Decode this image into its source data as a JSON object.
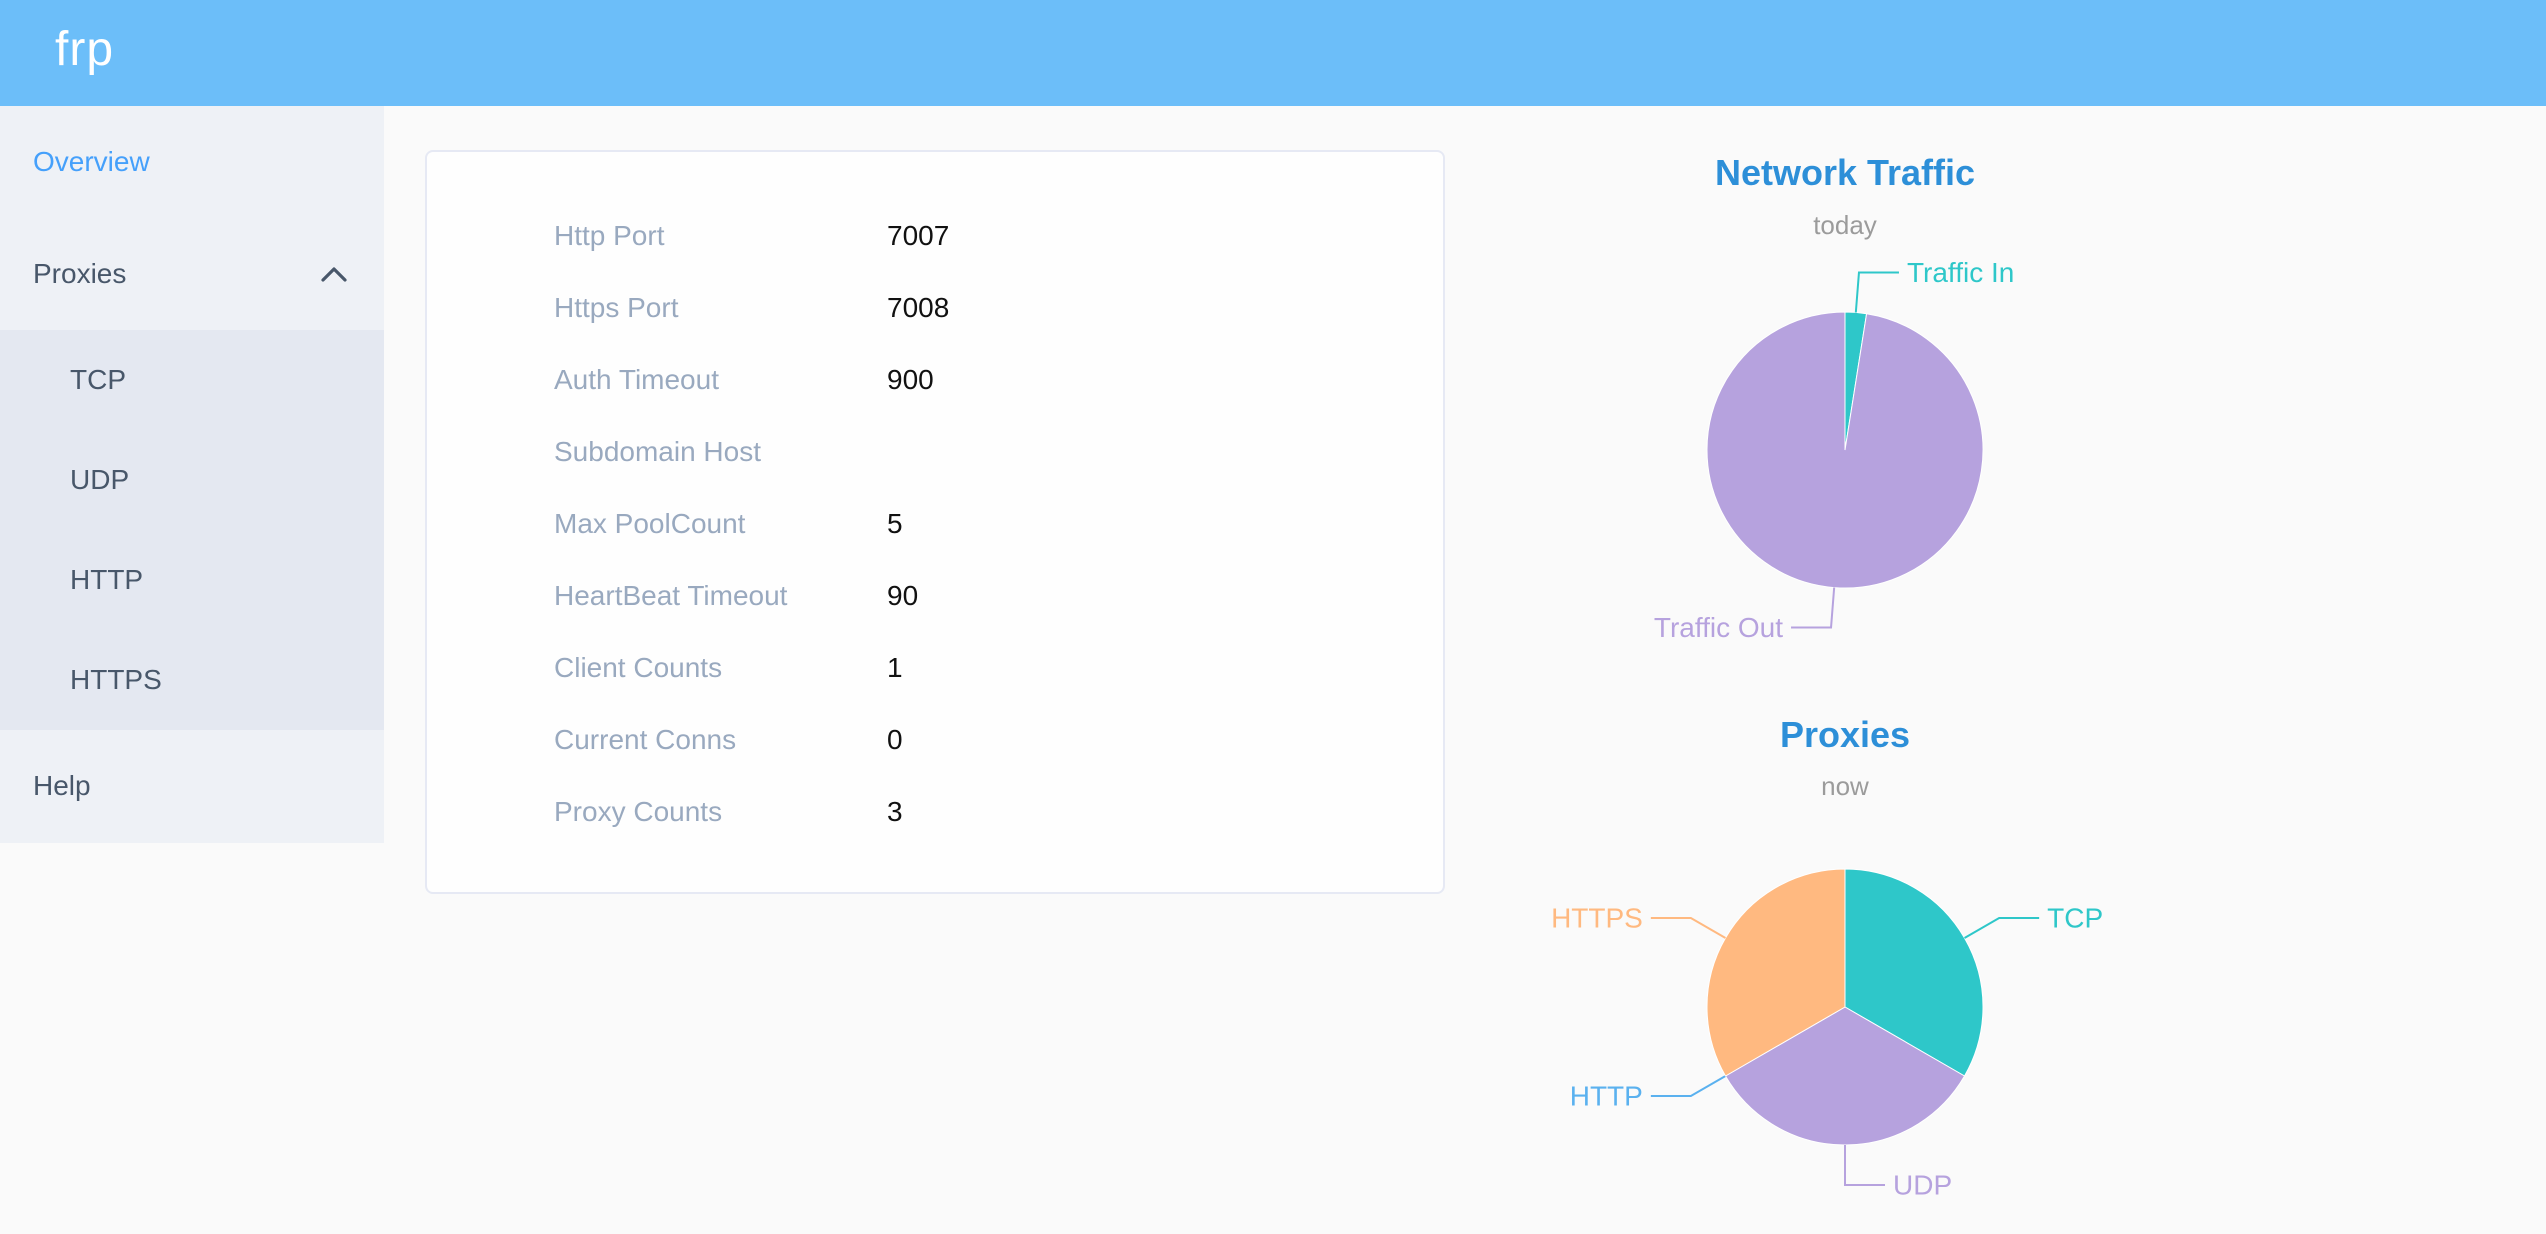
{
  "header": {
    "logo_text": "frp",
    "bg_color": "#6cbef9"
  },
  "sidebar": {
    "overview_label": "Overview",
    "proxies_label": "Proxies",
    "submenu": [
      "TCP",
      "UDP",
      "HTTP",
      "HTTPS"
    ],
    "help_label": "Help",
    "active_item": "Overview",
    "active_color": "#45a0fb",
    "bg_color": "#eef1f6",
    "submenu_bg_color": "#e4e8f1"
  },
  "server_info_card": {
    "rows": [
      {
        "label": "Http Port",
        "value": "7007"
      },
      {
        "label": "Https Port",
        "value": "7008"
      },
      {
        "label": "Auth Timeout",
        "value": "900"
      },
      {
        "label": "Subdomain Host",
        "value": ""
      },
      {
        "label": "Max PoolCount",
        "value": "5"
      },
      {
        "label": "HeartBeat Timeout",
        "value": "90"
      },
      {
        "label": "Client Counts",
        "value": "1"
      },
      {
        "label": "Current Conns",
        "value": "0"
      },
      {
        "label": "Proxy Counts",
        "value": "3"
      }
    ]
  },
  "chart_data": [
    {
      "type": "pie",
      "title": "Network Traffic",
      "subtitle": "today",
      "legend": "none",
      "labels": "outside, colored like slice, with leader lines",
      "title_color": "#2d8fd8",
      "slices": [
        {
          "name": "Traffic In",
          "value": 2.5,
          "unit": "percent-estimate",
          "color": "#2ec7c9"
        },
        {
          "name": "Traffic Out",
          "value": 97.5,
          "unit": "percent-estimate",
          "color": "#b6a2de"
        }
      ]
    },
    {
      "type": "pie",
      "title": "Proxies",
      "subtitle": "now",
      "legend": "none",
      "labels": "outside, colored like slice, with leader lines",
      "title_color": "#2d8fd8",
      "slices": [
        {
          "name": "TCP",
          "value": 1,
          "color": "#2ec7c9"
        },
        {
          "name": "UDP",
          "value": 1,
          "color": "#b6a2de"
        },
        {
          "name": "HTTP",
          "value": 0,
          "color": "#5ab1ef"
        },
        {
          "name": "HTTPS",
          "value": 1,
          "color": "#ffb980"
        }
      ]
    }
  ]
}
